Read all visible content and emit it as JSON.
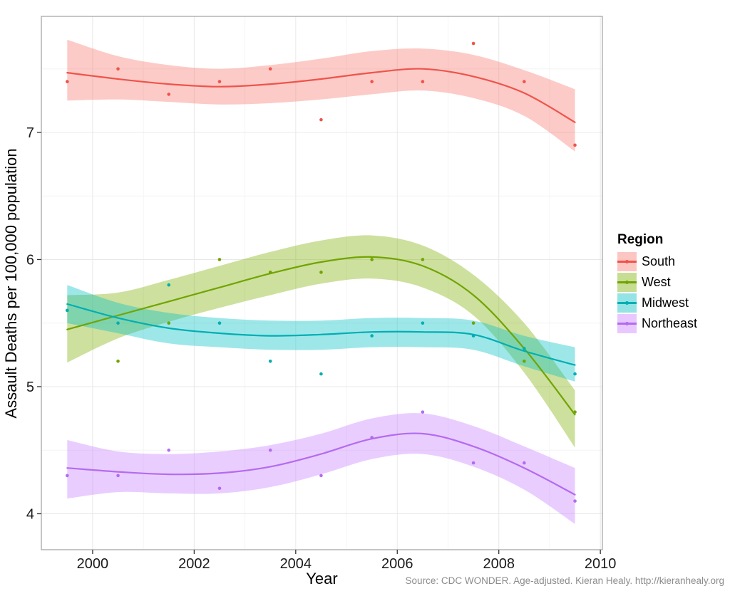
{
  "figure": {
    "y_axis_title": "Assault Deaths per 100,000 population",
    "x_axis_title": "Year",
    "legend_title": "Region",
    "caption": "Source: CDC WONDER. Age-adjusted. Kieran Healy. http://kieranhealy.org"
  },
  "chart_data": {
    "type": "scatter",
    "smoother": "loess with confidence band",
    "title": "",
    "xlabel": "Year",
    "ylabel": "Assault Deaths per 100,000 population",
    "legend_title": "Region",
    "legend_position": "right",
    "grid": "major and minor, light gray on white",
    "xlim": [
      1998.99,
      2010.04
    ],
    "ylim": [
      3.717,
      7.913
    ],
    "x_ticks": [
      2000,
      2002,
      2004,
      2006,
      2008,
      2010
    ],
    "x_minor_ticks": [
      2001,
      2003,
      2005,
      2007,
      2009
    ],
    "y_ticks": [
      4,
      5,
      6,
      7
    ],
    "y_minor_ticks": [
      4.5,
      5.5,
      6.5,
      7.5
    ],
    "x": [
      1999.5,
      2000.5,
      2001.5,
      2002.5,
      2003.5,
      2004.5,
      2005.5,
      2006.5,
      2007.5,
      2008.5,
      2009.5
    ],
    "series": [
      {
        "name": "South",
        "color": "#EF534B",
        "fill": "#F8766D",
        "points": [
          7.4,
          7.5,
          7.3,
          7.4,
          7.5,
          7.1,
          7.4,
          7.4,
          7.7,
          7.4,
          6.9
        ],
        "smooth": [
          7.47,
          7.42,
          7.38,
          7.36,
          7.38,
          7.42,
          7.47,
          7.5,
          7.44,
          7.31,
          7.08
        ],
        "ci_hi": [
          7.73,
          7.6,
          7.53,
          7.5,
          7.53,
          7.58,
          7.64,
          7.66,
          7.61,
          7.49,
          7.34
        ],
        "ci_lo": [
          7.25,
          7.26,
          7.24,
          7.22,
          7.23,
          7.26,
          7.3,
          7.33,
          7.27,
          7.13,
          6.85
        ]
      },
      {
        "name": "West",
        "color": "#71A400",
        "fill": "#7CAE00",
        "points": [
          5.6,
          5.2,
          5.5,
          6.0,
          5.9,
          5.9,
          6.0,
          6.0,
          5.5,
          5.2,
          4.8
        ],
        "smooth": [
          5.45,
          5.56,
          5.67,
          5.78,
          5.89,
          5.98,
          6.02,
          5.95,
          5.72,
          5.3,
          4.78
        ],
        "ci_hi": [
          5.72,
          5.74,
          5.84,
          5.95,
          6.06,
          6.15,
          6.19,
          6.11,
          5.88,
          5.5,
          4.97
        ],
        "ci_lo": [
          5.19,
          5.38,
          5.51,
          5.62,
          5.72,
          5.81,
          5.85,
          5.78,
          5.56,
          5.11,
          4.52
        ]
      },
      {
        "name": "Midwest",
        "color": "#00AEB3",
        "fill": "#00BFC4",
        "points": [
          5.6,
          5.5,
          5.8,
          5.5,
          5.2,
          5.1,
          5.4,
          5.5,
          5.4,
          5.3,
          5.1
        ],
        "smooth": [
          5.65,
          5.54,
          5.46,
          5.42,
          5.4,
          5.41,
          5.43,
          5.43,
          5.41,
          5.28,
          5.17
        ],
        "ci_hi": [
          5.8,
          5.66,
          5.58,
          5.54,
          5.52,
          5.52,
          5.54,
          5.54,
          5.52,
          5.4,
          5.31
        ],
        "ci_lo": [
          5.5,
          5.42,
          5.34,
          5.31,
          5.29,
          5.29,
          5.31,
          5.31,
          5.29,
          5.16,
          5.04
        ]
      },
      {
        "name": "Northeast",
        "color": "#B36BF0",
        "fill": "#C77CFF",
        "points": [
          4.3,
          4.3,
          4.5,
          4.2,
          4.5,
          4.3,
          4.6,
          4.8,
          4.4,
          4.4,
          4.1
        ],
        "smooth": [
          4.36,
          4.33,
          4.31,
          4.32,
          4.37,
          4.47,
          4.59,
          4.63,
          4.53,
          4.36,
          4.15
        ],
        "ci_hi": [
          4.58,
          4.49,
          4.47,
          4.49,
          4.54,
          4.63,
          4.75,
          4.79,
          4.69,
          4.53,
          4.36
        ],
        "ci_lo": [
          4.12,
          4.17,
          4.16,
          4.16,
          4.21,
          4.31,
          4.43,
          4.47,
          4.37,
          4.19,
          3.92
        ]
      }
    ],
    "style": {
      "band_alpha": 0.38,
      "panel_border_color": "#A0A0A0",
      "grid_major_color": "#E8E8E8",
      "grid_minor_color": "#F4F4F4",
      "tick_color": "#333333"
    }
  }
}
